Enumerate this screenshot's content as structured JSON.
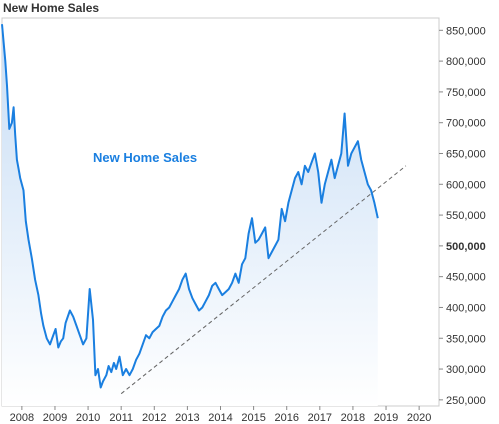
{
  "chart_data": {
    "type": "area",
    "title": "New Home Sales",
    "annotation": "New Home Sales",
    "xlabel": "",
    "ylabel": "",
    "x_tick_labels": [
      "2008",
      "2009",
      "2010",
      "2011",
      "2012",
      "2013",
      "2014",
      "2015",
      "2016",
      "2017",
      "2018",
      "2019",
      "2020"
    ],
    "y_tick_labels": [
      "250,000",
      "300,000",
      "350,000",
      "400,000",
      "450,000",
      "500,000",
      "550,000",
      "600,000",
      "650,000",
      "700,000",
      "750,000",
      "800,000",
      "850,000"
    ],
    "y_bold_tick": "500,000",
    "xlim": [
      2007.4,
      2020.6
    ],
    "ylim": [
      240000,
      870000
    ],
    "grid": false,
    "legend": "none",
    "series": [
      {
        "values_x": [
          2007.4,
          2007.5,
          2007.55,
          2007.62,
          2007.7,
          2007.75,
          2007.8,
          2007.85,
          2007.9,
          2007.95,
          2008.05,
          2008.12,
          2008.2,
          2008.3,
          2008.4,
          2008.5,
          2008.58,
          2008.65,
          2008.75,
          2008.85,
          2008.95,
          2009.02,
          2009.1,
          2009.18,
          2009.25,
          2009.32,
          2009.45,
          2009.55,
          2009.65,
          2009.75,
          2009.85,
          2009.95,
          2010.05,
          2010.15,
          2010.22,
          2010.3,
          2010.38,
          2010.45,
          2010.55,
          2010.62,
          2010.7,
          2010.78,
          2010.85,
          2010.95,
          2011.05,
          2011.15,
          2011.25,
          2011.35,
          2011.45,
          2011.55,
          2011.65,
          2011.75,
          2011.85,
          2011.95,
          2012.05,
          2012.15,
          2012.25,
          2012.35,
          2012.45,
          2012.55,
          2012.65,
          2012.75,
          2012.85,
          2012.95,
          2013.05,
          2013.15,
          2013.25,
          2013.35,
          2013.45,
          2013.55,
          2013.65,
          2013.75,
          2013.85,
          2013.95,
          2014.05,
          2014.15,
          2014.25,
          2014.35,
          2014.45,
          2014.55,
          2014.65,
          2014.75,
          2014.85,
          2014.95,
          2015.05,
          2015.15,
          2015.25,
          2015.35,
          2015.45,
          2015.55,
          2015.65,
          2015.75,
          2015.85,
          2015.95,
          2016.05,
          2016.15,
          2016.25,
          2016.35,
          2016.45,
          2016.55,
          2016.65,
          2016.75,
          2016.85,
          2016.95,
          2017.05,
          2017.15,
          2017.25,
          2017.35,
          2017.45,
          2017.55,
          2017.65,
          2017.75,
          2017.85,
          2017.95,
          2018.05,
          2018.15,
          2018.25,
          2018.35,
          2018.45,
          2018.55,
          2018.65,
          2018.75
        ],
        "values_y": [
          860000,
          800000,
          760000,
          690000,
          700000,
          725000,
          680000,
          640000,
          625000,
          610000,
          590000,
          540000,
          510000,
          480000,
          445000,
          420000,
          390000,
          370000,
          350000,
          340000,
          355000,
          365000,
          335000,
          345000,
          350000,
          375000,
          395000,
          385000,
          370000,
          355000,
          340000,
          350000,
          430000,
          380000,
          290000,
          300000,
          270000,
          280000,
          290000,
          305000,
          295000,
          310000,
          300000,
          320000,
          290000,
          300000,
          290000,
          300000,
          315000,
          325000,
          340000,
          355000,
          350000,
          360000,
          365000,
          370000,
          385000,
          395000,
          400000,
          410000,
          420000,
          430000,
          445000,
          455000,
          430000,
          415000,
          405000,
          395000,
          400000,
          410000,
          420000,
          435000,
          440000,
          430000,
          420000,
          425000,
          430000,
          440000,
          455000,
          440000,
          470000,
          480000,
          520000,
          545000,
          505000,
          510000,
          520000,
          530000,
          480000,
          490000,
          500000,
          510000,
          560000,
          540000,
          570000,
          590000,
          610000,
          620000,
          600000,
          630000,
          620000,
          635000,
          650000,
          620000,
          570000,
          600000,
          620000,
          640000,
          610000,
          630000,
          650000,
          715000,
          630000,
          650000,
          660000,
          670000,
          640000,
          620000,
          600000,
          590000,
          570000,
          545000
        ],
        "trend": {
          "from": [
            2011.0,
            260000
          ],
          "to": [
            2019.6,
            630000
          ]
        }
      }
    ]
  },
  "colors": {
    "line": "#1a7fe0",
    "fill_top": "#c7ddf5",
    "fill_bottom": "#ffffff",
    "trend": "#666666",
    "axis": "#888888",
    "tick_text": "#333333",
    "annotation": "#1a7fe0"
  }
}
